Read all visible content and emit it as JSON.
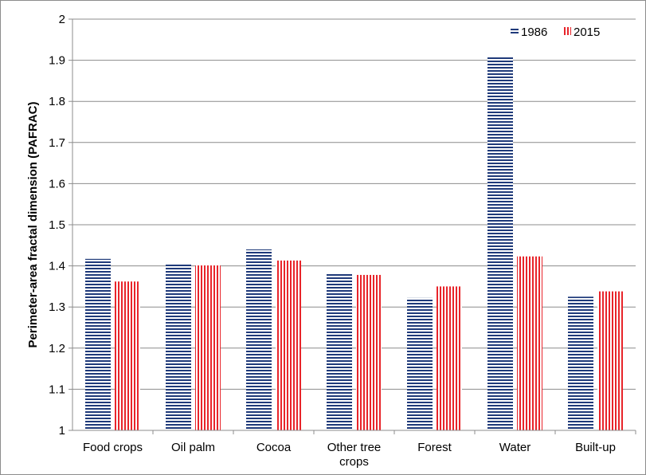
{
  "chart_data": {
    "type": "bar",
    "title": "",
    "xlabel": "",
    "ylabel": "Perimeter-area  fractal dimension (PAFRAC)",
    "ylim": [
      1,
      2
    ],
    "yticks": [
      "1",
      "1.1",
      "1.2",
      "1.3",
      "1.4",
      "1.5",
      "1.6",
      "1.7",
      "1.8",
      "1.9",
      "2"
    ],
    "ytick_values": [
      1,
      1.1,
      1.2,
      1.3,
      1.4,
      1.5,
      1.6,
      1.7,
      1.8,
      1.9,
      2
    ],
    "grid": "horizontal",
    "legend_position": "top-right",
    "categories": [
      [
        "Food crops"
      ],
      [
        "Oil palm"
      ],
      [
        "Cocoa"
      ],
      [
        "Other tree",
        "crops"
      ],
      [
        "Forest"
      ],
      [
        "Water"
      ],
      [
        "Built-up"
      ]
    ],
    "series": [
      {
        "name": "1986",
        "color": "#1f3a7a",
        "pattern": "horizontal-stripes",
        "values": [
          1.417,
          1.405,
          1.44,
          1.38,
          1.322,
          1.91,
          1.325
        ]
      },
      {
        "name": "2015",
        "color": "#e8242a",
        "pattern": "vertical-stripes",
        "values": [
          1.362,
          1.401,
          1.413,
          1.378,
          1.35,
          1.423,
          1.338
        ]
      }
    ]
  }
}
